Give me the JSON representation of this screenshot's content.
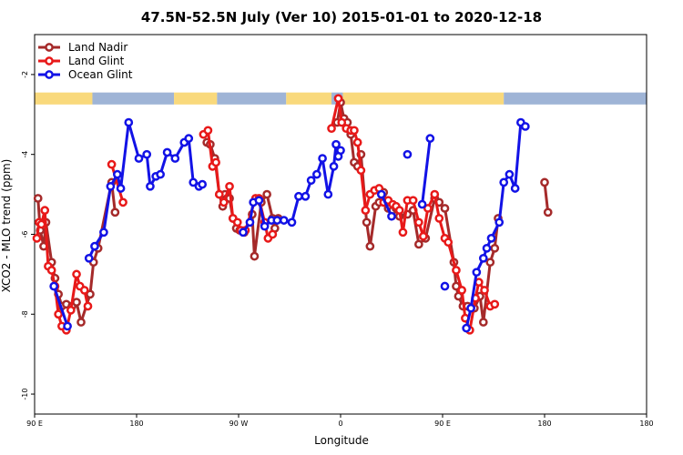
{
  "chart_data": {
    "type": "line",
    "title": "47.5N-52.5N July (Ver 10)   2015-01-01 to 2020-12-18",
    "xlabel": "Longitude",
    "ylabel": "XCO2 - MLO trend (ppm)",
    "xlim": [
      0,
      540
    ],
    "ylim": [
      -10.5,
      -1.0
    ],
    "x_ticks": [
      {
        "x": 0,
        "label": "90 E"
      },
      {
        "x": 90,
        "label": "180"
      },
      {
        "x": 180,
        "label": "90 W"
      },
      {
        "x": 270,
        "label": "0"
      },
      {
        "x": 360,
        "label": "90 E"
      },
      {
        "x": 450,
        "label": "180"
      }
    ],
    "y_ticks": [
      {
        "y": -2,
        "label": "-2"
      },
      {
        "y": -4,
        "label": "-4"
      },
      {
        "y": -6,
        "label": "-6"
      },
      {
        "y": -8,
        "label": "-8"
      },
      {
        "y": -10,
        "label": "-10"
      }
    ],
    "legend": {
      "placement": "top-left"
    },
    "land_ocean_strip": {
      "y_top": -2.45,
      "y_bottom": -2.75,
      "land_color": "#f9d97c",
      "ocean_color": "#9fb4d6"
    },
    "series": [
      {
        "name": "Land Nadir",
        "color": "#a52a2a",
        "x": [
          3,
          5,
          8,
          10,
          15,
          18,
          21,
          24,
          28,
          33,
          37,
          41,
          49,
          52,
          56,
          68,
          71,
          152,
          155,
          159,
          163,
          166,
          168,
          170,
          172,
          175,
          178,
          181,
          185,
          192,
          194,
          200,
          205,
          210,
          212,
          215,
          267,
          270,
          273,
          276,
          279,
          282,
          285,
          288,
          293,
          296,
          301,
          304,
          308,
          312,
          316,
          319,
          322,
          329,
          334,
          339,
          345,
          353,
          357,
          362,
          370,
          372,
          374,
          378,
          382,
          388,
          393,
          396,
          402,
          406,
          409,
          450,
          453
        ],
        "y": [
          -5.1,
          -5.9,
          -6.3,
          -5.7,
          -6.7,
          -7.1,
          -7.5,
          -7.8,
          -7.75,
          -7.8,
          -7.7,
          -8.2,
          -7.5,
          -6.7,
          -6.35,
          -4.7,
          -5.45,
          -3.7,
          -3.75,
          -4.1,
          -5.0,
          -5.3,
          -5.0,
          -5.1,
          -5.1,
          -5.6,
          -5.85,
          -5.9,
          -5.95,
          -5.5,
          -6.55,
          -5.2,
          -5.0,
          -5.6,
          -5.85,
          -5.6,
          -3.2,
          -2.7,
          -3.1,
          -3.2,
          -3.5,
          -4.2,
          -4.3,
          -4.0,
          -5.7,
          -6.3,
          -5.3,
          -5.2,
          -4.95,
          -5.35,
          -5.4,
          -5.35,
          -5.55,
          -5.5,
          -5.4,
          -6.25,
          -6.1,
          -5.1,
          -5.2,
          -5.35,
          -6.7,
          -7.3,
          -7.55,
          -7.8,
          -7.8,
          -7.85,
          -7.55,
          -8.2,
          -6.7,
          -6.35,
          -5.6,
          -4.7,
          -5.45
        ]
      },
      {
        "name": "Land Glint",
        "color": "#e81919",
        "x": [
          2,
          4,
          6,
          9,
          12,
          15,
          18,
          21,
          24,
          28,
          32,
          37,
          40,
          44,
          47,
          68,
          78,
          149,
          153,
          157,
          160,
          163,
          167,
          172,
          175,
          179,
          182,
          186,
          195,
          198,
          203,
          206,
          210,
          262,
          268,
          271,
          275,
          279,
          282,
          285,
          288,
          292,
          296,
          300,
          304,
          308,
          312,
          316,
          319,
          322,
          325,
          329,
          334,
          339,
          343,
          347,
          353,
          357,
          362,
          365,
          372,
          377,
          380,
          384,
          389,
          392,
          397,
          402,
          406
        ],
        "y": [
          -6.1,
          -5.7,
          -5.75,
          -5.4,
          -6.8,
          -6.9,
          -7.3,
          -8.0,
          -8.3,
          -8.4,
          -7.9,
          -7.0,
          -7.3,
          -7.4,
          -7.8,
          -4.25,
          -5.2,
          -3.5,
          -3.4,
          -4.3,
          -4.2,
          -5.0,
          -5.2,
          -4.8,
          -5.6,
          -5.7,
          -5.9,
          -5.9,
          -5.1,
          -5.1,
          -5.7,
          -6.1,
          -6.0,
          -3.35,
          -2.6,
          -3.2,
          -3.35,
          -3.4,
          -3.4,
          -3.7,
          -4.4,
          -5.4,
          -5.0,
          -4.9,
          -4.85,
          -5.2,
          -5.15,
          -5.25,
          -5.3,
          -5.4,
          -5.95,
          -5.15,
          -5.15,
          -5.7,
          -6.05,
          -5.35,
          -5.0,
          -5.6,
          -6.1,
          -6.2,
          -6.9,
          -7.4,
          -8.1,
          -8.4,
          -7.6,
          -7.2,
          -7.4,
          -7.8,
          -7.75
        ]
      },
      {
        "name": "Ocean Glint",
        "color": "#1212e6",
        "x": [
          17,
          29,
          48,
          53,
          61,
          67,
          73,
          76,
          83,
          92,
          99,
          102,
          107,
          111,
          117,
          124,
          132,
          136,
          140,
          145,
          148,
          184,
          190,
          193,
          198,
          203,
          209,
          214,
          220,
          227,
          233,
          239,
          244,
          249,
          254,
          259,
          264,
          266,
          270,
          268,
          306,
          315,
          329,
          342,
          349,
          362,
          381,
          385,
          390,
          396,
          399,
          403,
          410,
          414,
          419,
          424,
          429,
          433
        ],
        "y": [
          -7.3,
          -8.3,
          -6.6,
          -6.3,
          -5.95,
          -4.8,
          -4.5,
          -4.85,
          -3.2,
          -4.1,
          -4.0,
          -4.8,
          -4.55,
          -4.5,
          -3.95,
          -4.1,
          -3.7,
          -3.6,
          -4.7,
          -4.8,
          -4.75,
          -5.95,
          -5.7,
          -5.2,
          -5.15,
          -5.8,
          -5.65,
          -5.65,
          -5.65,
          -5.7,
          -5.05,
          -5.05,
          -4.65,
          -4.5,
          -4.1,
          -5.0,
          -4.3,
          -3.75,
          -3.9,
          -4.05,
          -5.0,
          -5.55,
          -4.0,
          -5.25,
          -3.6,
          -7.3,
          -8.35,
          -7.85,
          -6.95,
          -6.6,
          -6.35,
          -6.1,
          -5.7,
          -4.7,
          -4.5,
          -4.85,
          -3.2,
          -3.3
        ]
      }
    ]
  }
}
